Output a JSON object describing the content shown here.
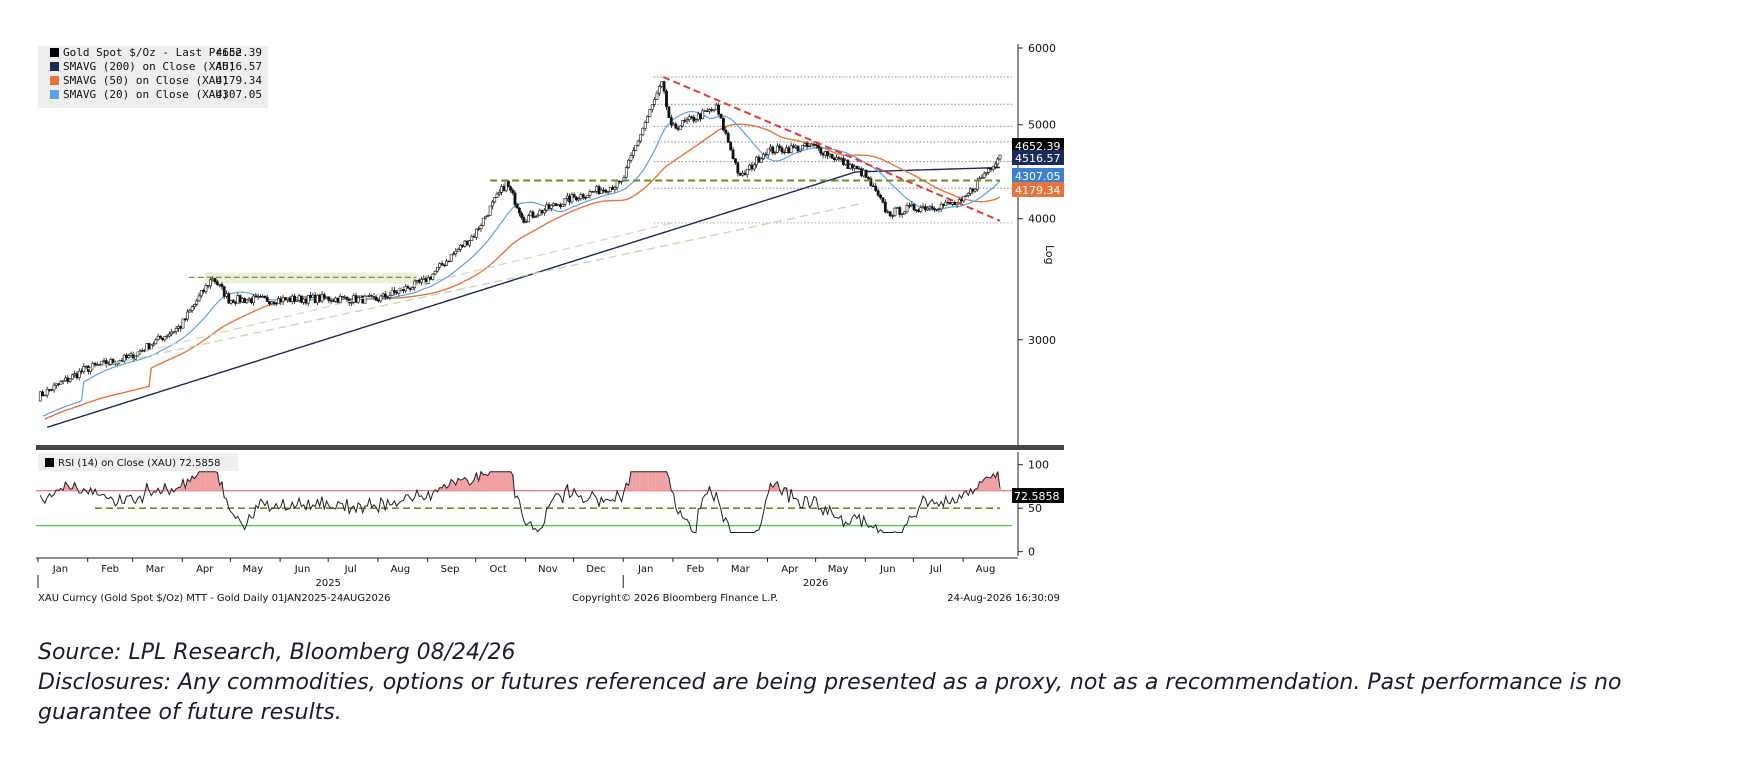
{
  "chart_data": {
    "type": "line",
    "price_scale": "log",
    "price_axis": {
      "ticks": [
        3000,
        4000,
        5000,
        6000
      ],
      "ylim": [
        2600,
        6000
      ],
      "side_label": "Log"
    },
    "legend": [
      {
        "label": "Gold Spot $/Oz - Last Price",
        "value": "4652.39",
        "color": "#000000"
      },
      {
        "label": "SMAVG (200)  on Close (XAU)",
        "value": "4516.57",
        "color": "#1a2a5a"
      },
      {
        "label": "SMAVG (50)  on Close (XAU)",
        "value": "4179.34",
        "color": "#e8743b"
      },
      {
        "label": "SMAVG (20)  on Close (XAU)",
        "value": "4307.05",
        "color": "#5ba3e6"
      }
    ],
    "last_value_tags": [
      {
        "value": "4652.39",
        "price": 4652.39,
        "color": "#000000"
      },
      {
        "value": "4516.57",
        "price": 4516.57,
        "color": "#1a2a5a"
      },
      {
        "value": "4307.05",
        "price": 4307.05,
        "color": "#3d7fd1"
      },
      {
        "value": "4179.34",
        "price": 4179.34,
        "color": "#e8743b"
      }
    ],
    "x_months": [
      "Jan",
      "Feb",
      "Mar",
      "Apr",
      "May",
      "Jun",
      "Jul",
      "Aug",
      "Sep",
      "Oct",
      "Nov",
      "Dec",
      "Jan",
      "Feb",
      "Mar",
      "Apr",
      "May",
      "Jun",
      "Jul",
      "Aug"
    ],
    "x_years": [
      "2025",
      "2026"
    ],
    "price_series": {
      "name": "Gold Spot $/Oz - Last Price",
      "month_end_approx": [
        {
          "x": "2025-01-01",
          "y": 2620
        },
        {
          "x": "2025-01-31",
          "y": 2800
        },
        {
          "x": "2025-02-28",
          "y": 2880
        },
        {
          "x": "2025-03-31",
          "y": 3100
        },
        {
          "x": "2025-04-20",
          "y": 3480
        },
        {
          "x": "2025-04-30",
          "y": 3300
        },
        {
          "x": "2025-05-31",
          "y": 3300
        },
        {
          "x": "2025-06-30",
          "y": 3310
        },
        {
          "x": "2025-07-31",
          "y": 3300
        },
        {
          "x": "2025-08-31",
          "y": 3450
        },
        {
          "x": "2025-09-30",
          "y": 3850
        },
        {
          "x": "2025-10-20",
          "y": 4350
        },
        {
          "x": "2025-10-31",
          "y": 4000
        },
        {
          "x": "2025-11-30",
          "y": 4200
        },
        {
          "x": "2025-12-31",
          "y": 4350
        },
        {
          "x": "2026-01-25",
          "y": 5500
        },
        {
          "x": "2026-01-31",
          "y": 4950
        },
        {
          "x": "2026-02-28",
          "y": 5200
        },
        {
          "x": "2026-03-15",
          "y": 4400
        },
        {
          "x": "2026-03-31",
          "y": 4700
        },
        {
          "x": "2026-04-30",
          "y": 4750
        },
        {
          "x": "2026-05-31",
          "y": 4450
        },
        {
          "x": "2026-06-15",
          "y": 4050
        },
        {
          "x": "2026-06-30",
          "y": 4100
        },
        {
          "x": "2026-07-31",
          "y": 4150
        },
        {
          "x": "2026-08-24",
          "y": 4652.39
        }
      ]
    },
    "rsi_panel": {
      "title": "RSI (14)  on Close (XAU) 72.5858",
      "value": "72.5858",
      "ticks": [
        0,
        50,
        100
      ],
      "ylim": [
        -5,
        110
      ],
      "overbought": 70,
      "oversold": 30,
      "midline": 50
    },
    "footer": {
      "left": "XAU Curncy (Gold Spot  $/Oz) MTT - Gold Daily 01JAN2025-24AUG2026",
      "center": "Copyright© 2026 Bloomberg Finance L.P.",
      "right": "24-Aug-2026 16:30:09"
    }
  },
  "footnotes": {
    "source": "Source: LPL Research, Bloomberg 08/24/26",
    "disclosures": "Disclosures: Any commodities, options or futures referenced are being presented as a proxy, not as a recommendation. Past performance is no guarantee of future results."
  },
  "colors": {
    "price": "#111111",
    "sma200": "#1a2a5a",
    "sma50": "#e8743b",
    "sma20": "#5ba3e6",
    "trend_red": "#e03a3a",
    "support_green": "#6b8e23",
    "rsi_overbought": "#e05050",
    "rsi_oversold": "#4fc94f"
  }
}
